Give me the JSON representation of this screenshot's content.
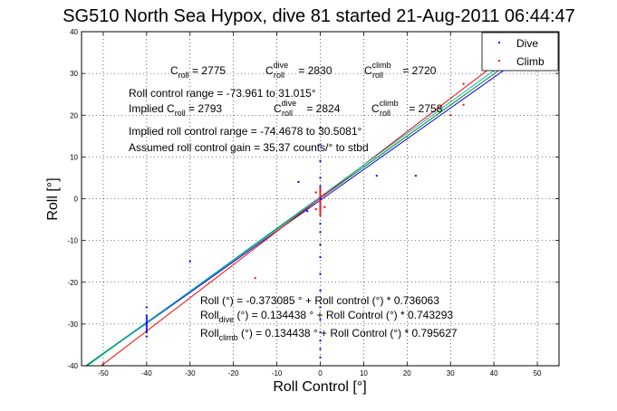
{
  "chart_data": {
    "type": "scatter",
    "title": "SG510 North Sea Hypox, dive 81 started 21-Aug-2011 06:44:47",
    "xlabel": "Roll Control [°]",
    "ylabel": "Roll [°]",
    "xlim": [
      -55,
      55
    ],
    "ylim": [
      -40,
      40
    ],
    "xticks": [
      -50,
      -40,
      -30,
      -20,
      -10,
      0,
      10,
      20,
      30,
      40,
      50
    ],
    "yticks": [
      -40,
      -30,
      -20,
      -10,
      0,
      10,
      20,
      30,
      40
    ],
    "grid": "dotted",
    "legend_position": "top-right",
    "series": [
      {
        "name": "Dive",
        "color": "#0000ff",
        "points": [
          [
            -40,
            -33
          ],
          [
            -40,
            -32
          ],
          [
            -40,
            -31.5
          ],
          [
            -40,
            -31
          ],
          [
            -40,
            -30.5
          ],
          [
            -40,
            -30
          ],
          [
            -40,
            -29.5
          ],
          [
            -40,
            -29
          ],
          [
            -40,
            -28.5
          ],
          [
            -40,
            -28
          ],
          [
            -40,
            -26
          ],
          [
            -30,
            -15
          ],
          [
            -5,
            4
          ],
          [
            -3,
            -3
          ],
          [
            0,
            -38
          ],
          [
            0,
            -36
          ],
          [
            0,
            -34
          ],
          [
            0,
            -32
          ],
          [
            0,
            -29
          ],
          [
            0,
            -26
          ],
          [
            0,
            -22
          ],
          [
            0,
            -18
          ],
          [
            0,
            -14
          ],
          [
            0,
            -11
          ],
          [
            0,
            -8
          ],
          [
            0,
            -6
          ],
          [
            0,
            -4
          ],
          [
            0,
            -3
          ],
          [
            0,
            -2
          ],
          [
            0,
            -1
          ],
          [
            0,
            0
          ],
          [
            0,
            1
          ],
          [
            0,
            2
          ],
          [
            0,
            3
          ],
          [
            0,
            5
          ],
          [
            0,
            9
          ],
          [
            0,
            13
          ],
          [
            0,
            17
          ],
          [
            22,
            5.5
          ],
          [
            13,
            5.5
          ]
        ]
      },
      {
        "name": "Climb",
        "color": "#ff0000",
        "points": [
          [
            0,
            -4
          ],
          [
            0,
            -3.5
          ],
          [
            0,
            -3
          ],
          [
            0,
            -2.5
          ],
          [
            0,
            -2
          ],
          [
            0,
            -1.5
          ],
          [
            0,
            -1
          ],
          [
            0,
            -0.5
          ],
          [
            0,
            0.5
          ],
          [
            0,
            1
          ],
          [
            0,
            1.5
          ],
          [
            0,
            2
          ],
          [
            0,
            2.5
          ],
          [
            -1,
            -2.5
          ],
          [
            1,
            -2
          ],
          [
            -1,
            1.5
          ],
          [
            1,
            1
          ],
          [
            33,
            22.5
          ],
          [
            33,
            27.5
          ],
          [
            30,
            20
          ],
          [
            -15,
            -19
          ]
        ]
      }
    ],
    "fit_lines": [
      {
        "color": "#0000ff",
        "intercept": -0.373085,
        "slope": 0.736063
      },
      {
        "color": "#008000",
        "intercept": 0.134438,
        "slope": 0.743293
      },
      {
        "color": "#ff0000",
        "intercept": 0.134438,
        "slope": 0.795627
      },
      {
        "color": "#00bfbf",
        "intercept": 0.5,
        "slope": 0.755
      }
    ],
    "annotations": {
      "c_roll_line": {
        "c1": "C",
        "s1": "roll",
        "v1": " = 2775",
        "c2": "C",
        "sup2": "dive",
        "s2": "roll",
        "v2": " = 2830",
        "c3": "C",
        "sup3": "climb",
        "s3": "roll",
        "v3": " = 2720"
      },
      "range_line": "Roll control range = -73.961 to 31.015°",
      "implied_line": {
        "c1": "Implied C",
        "s1": "roll",
        "v1": " = 2793",
        "c2": "C",
        "sup2": "dive",
        "s2": "roll",
        "v2": " = 2824",
        "c3": "C",
        "sup3": "climb",
        "s3": "roll",
        "v3": " = 2758"
      },
      "implied_range_line": "Implied roll control range = -74.4678 to 30.5081°",
      "gain_line": "Assumed roll control gain = 35.37 counts/° to stbd",
      "fit1": "Roll (°) = -0.373085 ° + Roll control (°) * 0.736063",
      "fit2": {
        "a": "Roll",
        "sub": "dive",
        "b": " (°) = 0.134438 ° + Roll Control (°) * 0.743293"
      },
      "fit3": {
        "a": "Roll",
        "sub": "climb",
        "b": " (°) = 0.134438 ° + Roll Control (°) * 0.795627"
      }
    }
  }
}
